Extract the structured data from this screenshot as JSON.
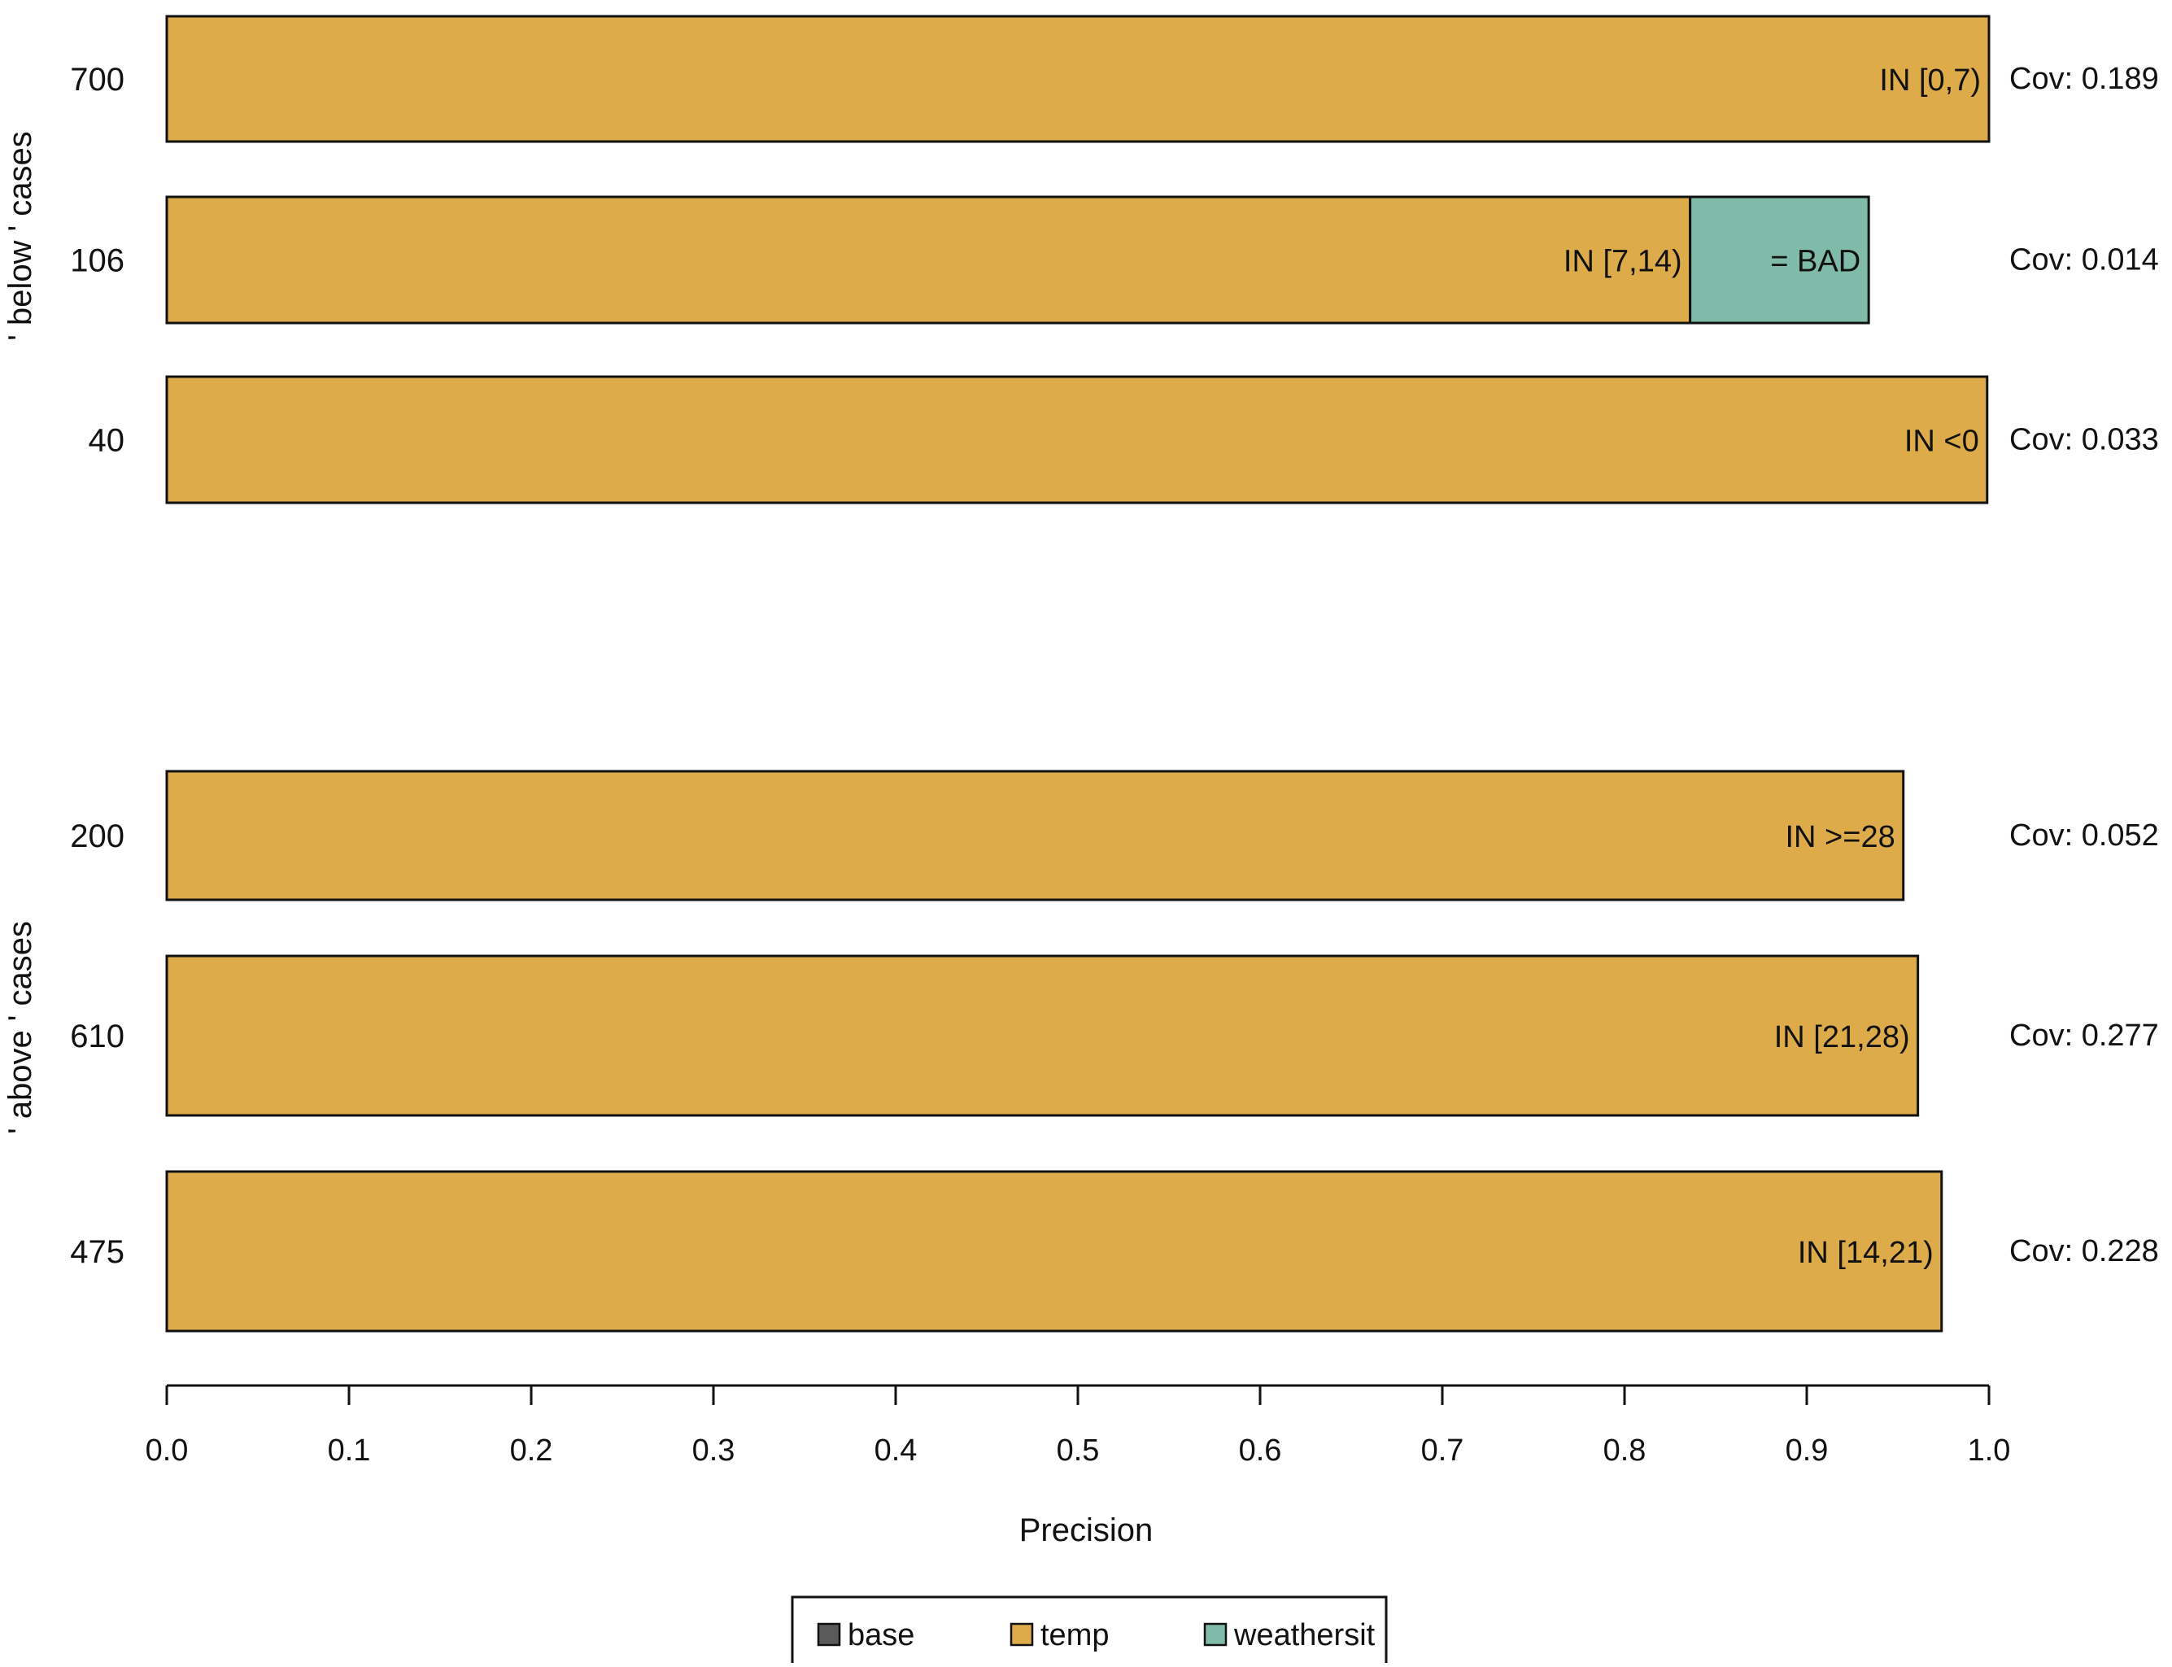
{
  "chart_data": {
    "type": "bar",
    "orientation": "horizontal",
    "xlabel": "Precision",
    "xlim": [
      0,
      1
    ],
    "xticks": [
      "0.0",
      "0.1",
      "0.2",
      "0.3",
      "0.4",
      "0.5",
      "0.6",
      "0.7",
      "0.8",
      "0.9",
      "1.0"
    ],
    "grid": false,
    "legend_position": "bottom-center",
    "legend": [
      {
        "name": "base",
        "color": "#5a5a5a"
      },
      {
        "name": "temp",
        "color": "#ddab4a"
      },
      {
        "name": "weathersit",
        "color": "#7fbba8"
      }
    ],
    "groups": [
      {
        "label": "' below ' cases",
        "rows": [
          {
            "category": "700",
            "coverage": "Cov: 0.189",
            "segments": [
              {
                "feature": "temp",
                "label": "IN [0,7)",
                "value": 1.0
              }
            ]
          },
          {
            "category": "106",
            "coverage": "Cov: 0.014",
            "segments": [
              {
                "feature": "temp",
                "label": "IN [7,14)",
                "value": 0.836
              },
              {
                "feature": "weathersit",
                "label": "= BAD",
                "value": 0.934
              }
            ]
          },
          {
            "category": "40",
            "coverage": "Cov: 0.033",
            "segments": [
              {
                "feature": "temp",
                "label": "IN <0",
                "value": 0.999
              }
            ]
          }
        ]
      },
      {
        "label": "' above ' cases",
        "rows": [
          {
            "category": "200",
            "coverage": "Cov: 0.052",
            "segments": [
              {
                "feature": "temp",
                "label": "IN >=28",
                "value": 0.953
              }
            ]
          },
          {
            "category": "610",
            "coverage": "Cov: 0.277",
            "segments": [
              {
                "feature": "temp",
                "label": "IN [21,28)",
                "value": 0.961
              }
            ]
          },
          {
            "category": "475",
            "coverage": "Cov: 0.228",
            "segments": [
              {
                "feature": "temp",
                "label": "IN [14,21)",
                "value": 0.974
              }
            ]
          }
        ]
      }
    ]
  }
}
